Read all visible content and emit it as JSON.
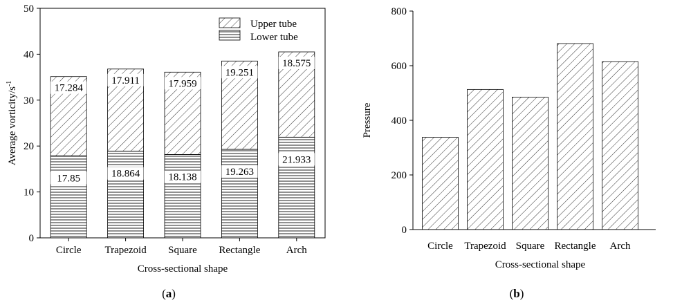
{
  "panels": {
    "a": {
      "label_open": "(",
      "label_letter": "a",
      "label_close": ")"
    },
    "b": {
      "label_open": "(",
      "label_letter": "b",
      "label_close": ")"
    }
  },
  "chart_data": [
    {
      "type": "bar",
      "stacked": true,
      "title": "",
      "categories": [
        "Circle",
        "Trapezoid",
        "Square",
        "Rectangle",
        "Arch"
      ],
      "series": [
        {
          "name": "Lower tube",
          "values": [
            17.85,
            18.864,
            18.138,
            19.263,
            21.933
          ],
          "pattern": "horizontal-lines"
        },
        {
          "name": "Upper tube",
          "values": [
            17.284,
            17.911,
            17.959,
            19.251,
            18.575
          ],
          "pattern": "diagonal-hatch"
        }
      ],
      "xlabel": "Cross-sectional shape",
      "ylabel": "Average vorticity/s",
      "ylabel_superscript": "-1",
      "ylim": [
        0,
        50
      ],
      "yticks": [
        0,
        10,
        20,
        30,
        40,
        50
      ],
      "legend_position": "top-right",
      "legend_order": [
        "Upper tube",
        "Lower tube"
      ],
      "grid": false
    },
    {
      "type": "bar",
      "title": "",
      "categories": [
        "Circle",
        "Trapezoid",
        "Square",
        "Rectangle",
        "Arch"
      ],
      "values": [
        338,
        513,
        485,
        681,
        615
      ],
      "pattern": "diagonal-hatch",
      "xlabel": "Cross-sectional shape",
      "ylabel": "Pressure",
      "ylim": [
        0,
        800
      ],
      "yticks": [
        0,
        200,
        400,
        600,
        800
      ],
      "grid": false
    }
  ]
}
